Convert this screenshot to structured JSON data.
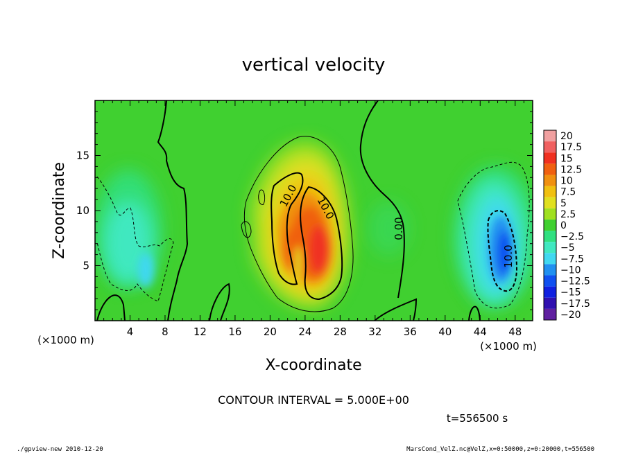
{
  "chart_data": {
    "type": "heatmap",
    "title": "vertical velocity",
    "xlabel": "X-coordinate",
    "ylabel": "Z-coordinate",
    "x_unit_left": "(×1000 m)",
    "x_unit_right": "(×1000 m)",
    "xlim": [
      0,
      50
    ],
    "ylim": [
      0,
      20
    ],
    "x_ticks": [
      4,
      8,
      12,
      16,
      20,
      24,
      28,
      32,
      36,
      40,
      44,
      48
    ],
    "y_ticks": [
      5,
      10,
      15
    ],
    "contour_interval_text": "CONTOUR INTERVAL = 5.000E+00",
    "time_text": "t=556500 s",
    "footer_left": "./gpview-new  2010-12-20",
    "footer_right": "MarsCond_VelZ.nc@VelZ,x=0:50000,z=0:20000,t=556500",
    "contour_labels": [
      "10.0",
      "10.0",
      "0.00",
      "10.0"
    ],
    "colorbar": {
      "levels": [
        20,
        17.5,
        15,
        12.5,
        10,
        7.5,
        5,
        2.5,
        0,
        -2.5,
        -5,
        -7.5,
        -10,
        -12.5,
        -15,
        -17.5,
        -20
      ],
      "level_labels": [
        "20",
        "17.5",
        "15",
        "12.5",
        "10",
        "7.5",
        "5",
        "2.5",
        "0",
        "−2.5",
        "−5",
        "−7.5",
        "−10",
        "−12.5",
        "−15",
        "−17.5",
        "−20"
      ],
      "colors": [
        "#f0a0a0",
        "#f06060",
        "#f03020",
        "#f06010",
        "#f09010",
        "#f0c010",
        "#e0e020",
        "#a0e020",
        "#40d030",
        "#30e080",
        "#40e8c0",
        "#40d8f0",
        "#2090f0",
        "#1050f0",
        "#1020e0",
        "#3010b0",
        "#6020a0"
      ]
    },
    "features": [
      {
        "type": "updraft",
        "x_center": 24,
        "z_center": 8,
        "max_value": 15
      },
      {
        "type": "downdraft",
        "x_center": 46,
        "z_center": 6,
        "min_value": -12.5
      },
      {
        "type": "downdraft",
        "x_center": 6,
        "z_center": 5,
        "min_value": -5
      }
    ]
  }
}
